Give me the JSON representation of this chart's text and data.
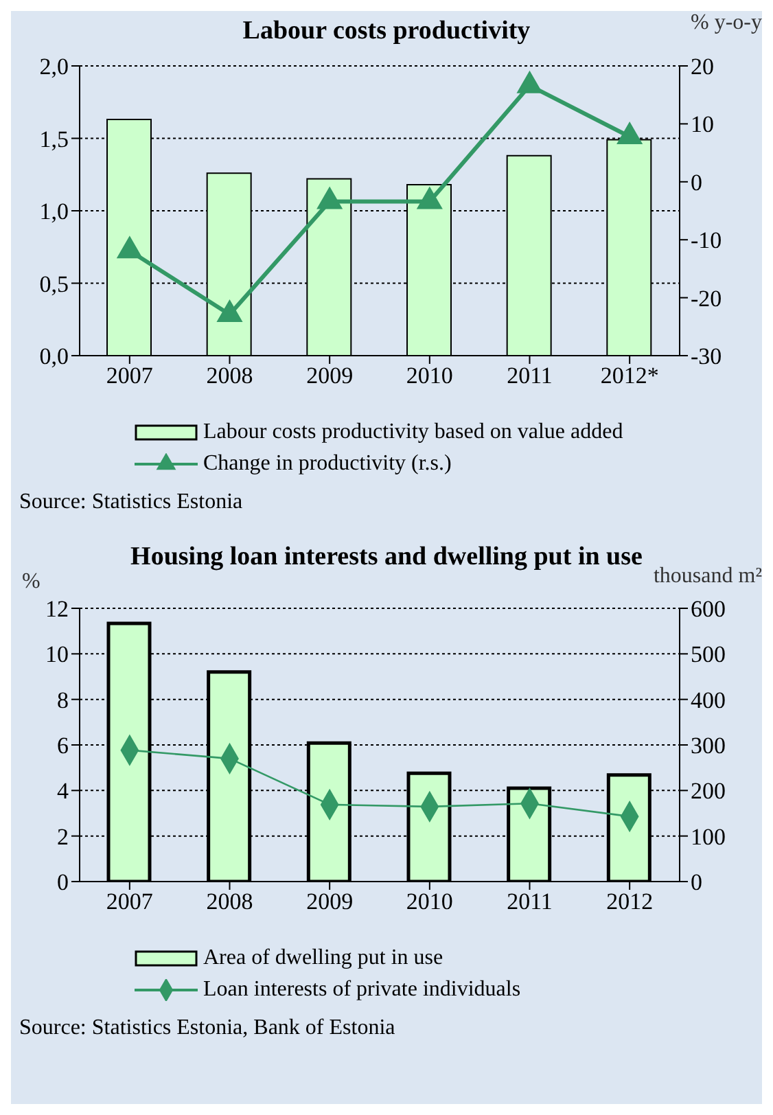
{
  "chart_data": [
    {
      "type": "bar",
      "title": "Labour costs productivity",
      "y2label": "% y-o-y",
      "categories": [
        "2007",
        "2008",
        "2009",
        "2010",
        "2011",
        "2012*"
      ],
      "series": [
        {
          "name": "Labour costs productivity based on value added",
          "color": "#ccffcc",
          "values": [
            1.63,
            1.26,
            1.22,
            1.18,
            1.38,
            1.49
          ]
        },
        {
          "name": "Change in productivity (r.s.)",
          "type": "line",
          "axis": "y2",
          "color": "#339966",
          "marker": "triangle",
          "values": [
            -11.9,
            -22.9,
            -3.4,
            -3.4,
            16.6,
            7.8
          ]
        }
      ],
      "ylim": [
        0,
        2
      ],
      "yticks": [
        {
          "value": 0,
          "label": "0,0"
        },
        {
          "value": 0.5,
          "label": "0,5"
        },
        {
          "value": 1,
          "label": "1,0"
        },
        {
          "value": 1.5,
          "label": "1,5"
        },
        {
          "value": 2,
          "label": "2,0"
        }
      ],
      "y2lim": [
        -30,
        20
      ],
      "y2ticks": [
        -30,
        -20,
        -10,
        0,
        10,
        20
      ],
      "grid": "y",
      "legend": "bottom",
      "annotations": [
        "Source: Statistics Estonia"
      ]
    },
    {
      "type": "bar",
      "title": "Housing loan interests and dwelling put in use",
      "ylabel": "%",
      "y2label": "thousand m²",
      "categories": [
        "2007",
        "2008",
        "2009",
        "2010",
        "2011",
        "2012"
      ],
      "series": [
        {
          "name": "Area of dwelling put in use",
          "axis": "y2",
          "color": "#ccffcc",
          "values": [
            567,
            460,
            304,
            238,
            205,
            234
          ]
        },
        {
          "name": "Loan interests of private individuals",
          "type": "line",
          "color": "#339966",
          "marker": "diamond",
          "values": [
            5.77,
            5.4,
            3.38,
            3.29,
            3.43,
            2.86
          ]
        }
      ],
      "ylim": [
        0,
        12
      ],
      "yticks": [
        0,
        2,
        4,
        6,
        8,
        10,
        12
      ],
      "y2lim": [
        0,
        600
      ],
      "y2ticks": [
        0,
        100,
        200,
        300,
        400,
        500,
        600
      ],
      "grid": "y",
      "legend": "bottom",
      "annotations": [
        "Source: Statistics Estonia, Bank of Estonia"
      ]
    }
  ]
}
